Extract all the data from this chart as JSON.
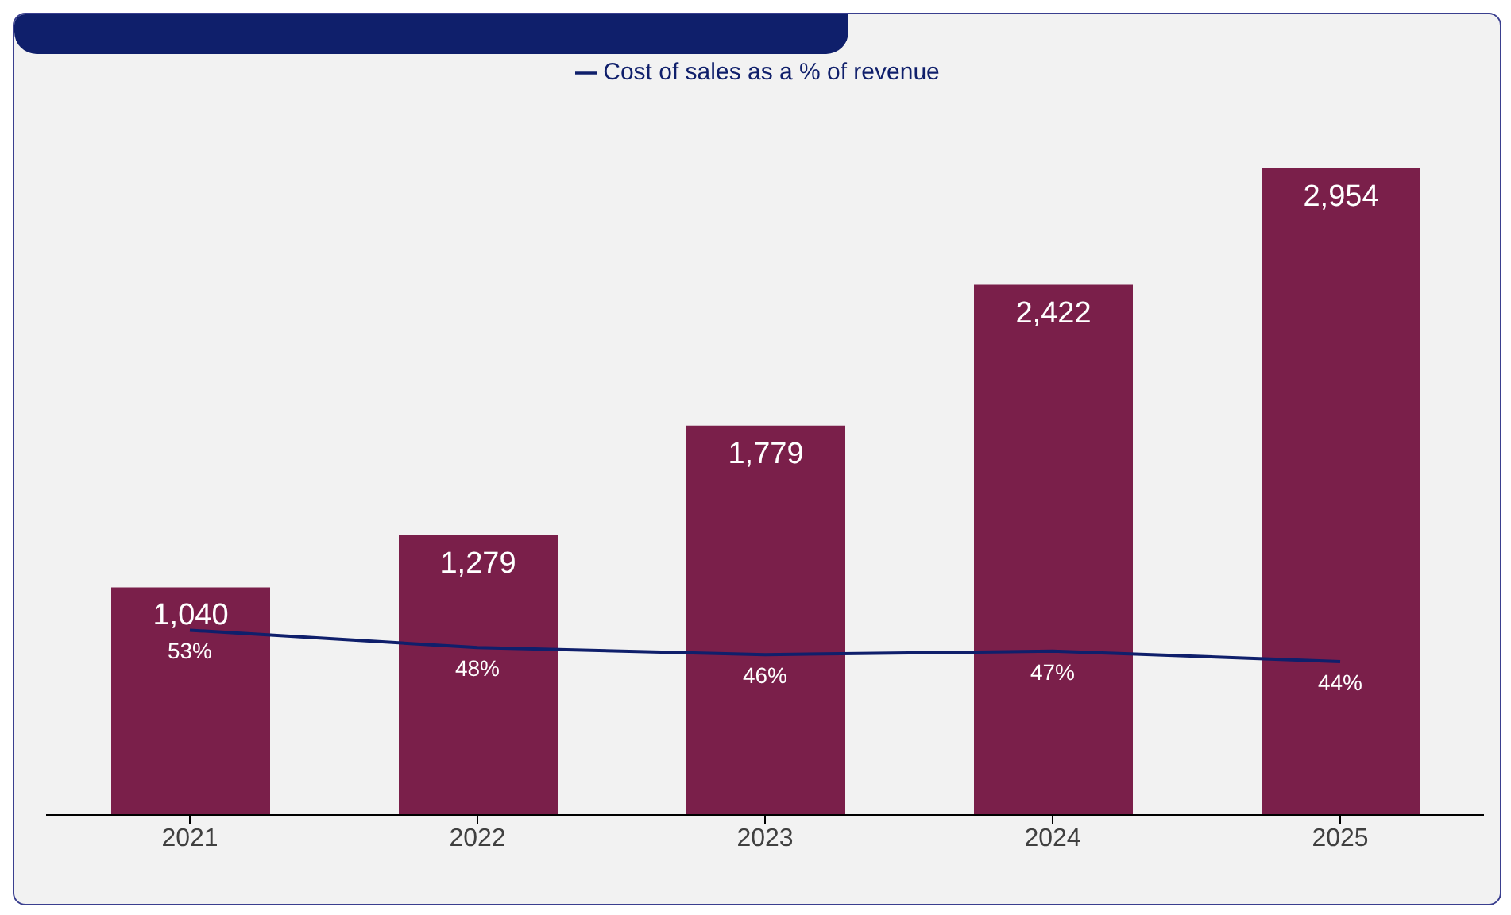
{
  "chart_data": {
    "type": "bar",
    "categories": [
      "2021",
      "2022",
      "2023",
      "2024",
      "2025"
    ],
    "series": [
      {
        "color": "#7a1f4a",
        "values": [
          1040,
          1279,
          1779,
          2422,
          2954
        ],
        "value_labels": [
          "1,040",
          "1,279",
          "1,779",
          "2,422",
          "2,954"
        ]
      },
      {
        "type": "line",
        "name": "Cost of sales as a % of revenue",
        "color": "#0f1f6b",
        "axis": "y2",
        "values": [
          53,
          48,
          46,
          47,
          44
        ],
        "value_labels": [
          "53%",
          "48%",
          "46%",
          "47%",
          "44%"
        ]
      }
    ],
    "legend": "top",
    "marker": "none",
    "line_style": "solid",
    "grid": false,
    "tick_labels": "x"
  }
}
